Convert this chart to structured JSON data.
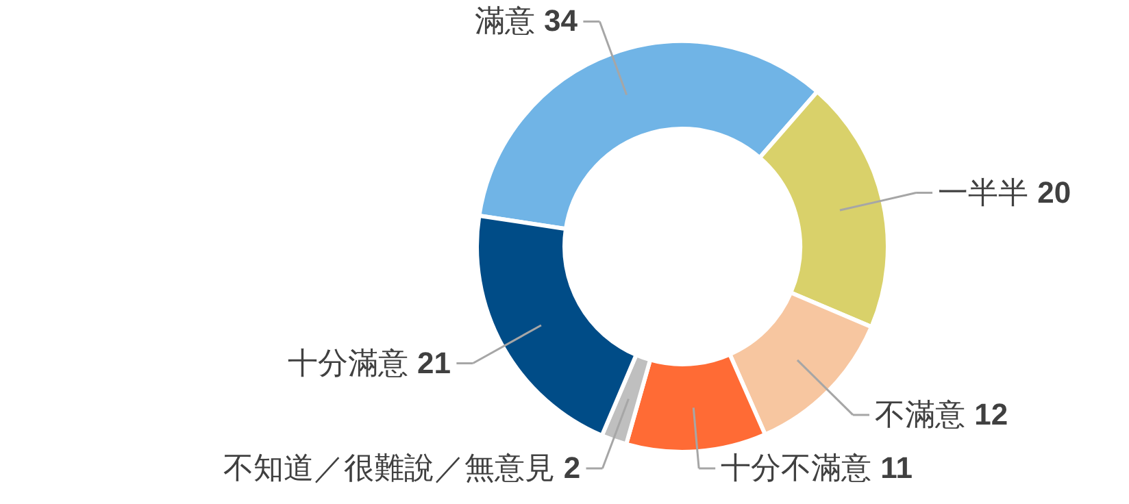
{
  "chart_data": {
    "type": "donut",
    "categories": [
      "滿意",
      "一半半",
      "不滿意",
      "十分不滿意",
      "不知道／很難說／無意見",
      "十分滿意"
    ],
    "values": [
      34,
      20,
      12,
      11,
      2,
      21
    ],
    "colors": [
      "#70b4e6",
      "#d9d16a",
      "#f7c6a0",
      "#ff6b35",
      "#bfbfbf",
      "#004c87"
    ],
    "data_labels": true
  }
}
